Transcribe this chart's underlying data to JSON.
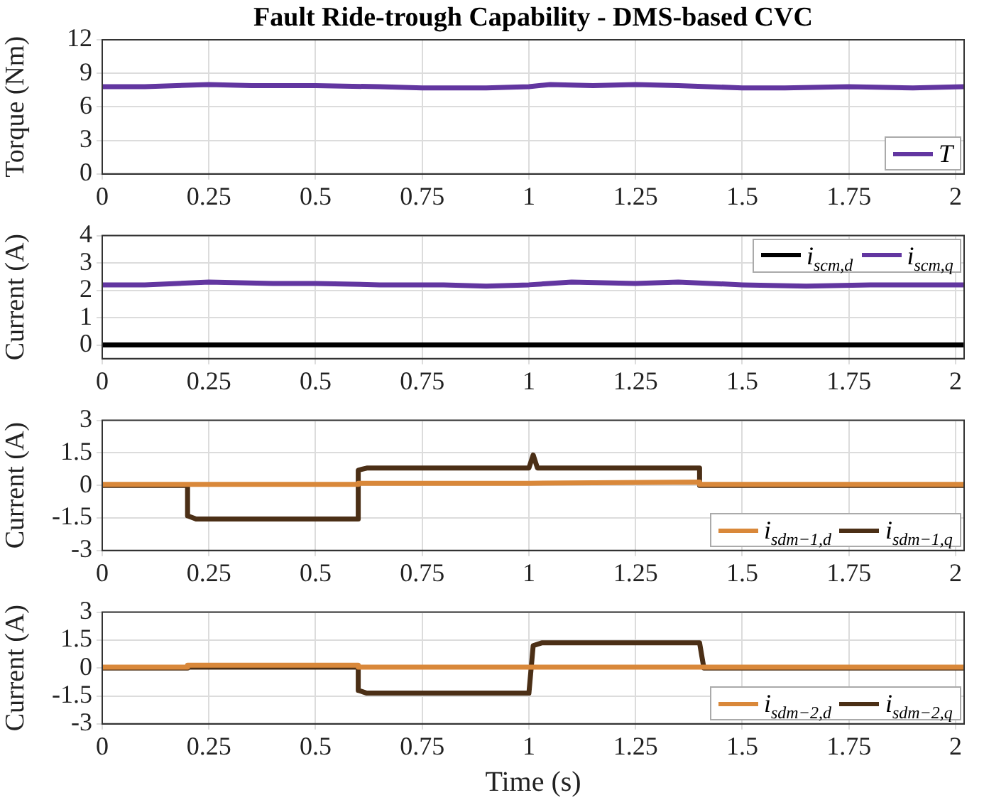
{
  "chart_data": [
    {
      "type": "line",
      "title": "Fault Ride-trough Capability - DMS-based CVC",
      "ylabel": "Torque (Nm)",
      "xlim": [
        0,
        2.02
      ],
      "xticks": [
        0,
        0.25,
        0.5,
        0.75,
        1,
        1.25,
        1.5,
        1.75,
        2
      ],
      "ylim": [
        0,
        12
      ],
      "yticks": [
        0,
        3,
        6,
        9,
        12
      ],
      "grid": true,
      "legend": "bottom right",
      "series": [
        {
          "name": "T",
          "color": "#6236a0",
          "x": [
            0,
            0.1,
            0.25,
            0.35,
            0.5,
            0.65,
            0.75,
            0.9,
            1,
            1.05,
            1.15,
            1.25,
            1.35,
            1.5,
            1.6,
            1.75,
            1.9,
            2.02
          ],
          "values": [
            7.8,
            7.8,
            8.0,
            7.9,
            7.9,
            7.8,
            7.7,
            7.7,
            7.8,
            8.0,
            7.9,
            8.0,
            7.9,
            7.7,
            7.7,
            7.8,
            7.7,
            7.8
          ]
        }
      ]
    },
    {
      "type": "line",
      "ylabel": "Current (A)",
      "xlim": [
        0,
        2.02
      ],
      "xticks": [
        0,
        0.25,
        0.5,
        0.75,
        1,
        1.25,
        1.5,
        1.75,
        2
      ],
      "ylim": [
        -0.5,
        4
      ],
      "yticks": [
        0,
        1,
        2,
        3,
        4
      ],
      "grid": true,
      "legend": "top right",
      "series": [
        {
          "name": "i$_{scm,d}$",
          "color": "#000000",
          "x": [
            0,
            0.5,
            1,
            1.5,
            2.02
          ],
          "values": [
            0,
            0,
            0,
            0,
            0
          ]
        },
        {
          "name": "i$_{scm,q}$",
          "color": "#6236a0",
          "x": [
            0,
            0.1,
            0.25,
            0.4,
            0.5,
            0.65,
            0.8,
            0.9,
            1,
            1.1,
            1.25,
            1.35,
            1.5,
            1.65,
            1.8,
            1.9,
            2.02
          ],
          "values": [
            2.2,
            2.2,
            2.3,
            2.25,
            2.25,
            2.2,
            2.2,
            2.15,
            2.2,
            2.3,
            2.25,
            2.3,
            2.2,
            2.15,
            2.2,
            2.2,
            2.2
          ]
        }
      ]
    },
    {
      "type": "line",
      "ylabel": "Current (A)",
      "xlim": [
        0,
        2.02
      ],
      "xticks": [
        0,
        0.25,
        0.5,
        0.75,
        1,
        1.25,
        1.5,
        1.75,
        2
      ],
      "ylim": [
        -3,
        3
      ],
      "yticks": [
        -3,
        -1.5,
        0,
        1.5,
        3
      ],
      "grid": true,
      "legend": "bottom right",
      "series": [
        {
          "name": "i$_{sdm−1,d}$",
          "color": "#d9883a",
          "x": [
            0,
            0.6,
            0.6,
            1.0,
            1.4,
            1.4,
            2.02
          ],
          "values": [
            0.05,
            0.05,
            0.1,
            0.1,
            0.15,
            0.05,
            0.05
          ]
        },
        {
          "name": "i$_{sdm−1,q}$",
          "color": "#4b2f16",
          "x": [
            0,
            0.2,
            0.2,
            0.22,
            0.6,
            0.6,
            0.62,
            1.0,
            1.01,
            1.02,
            1.4,
            1.4,
            2.02
          ],
          "values": [
            0,
            0,
            -1.4,
            -1.55,
            -1.55,
            0.7,
            0.8,
            0.8,
            1.4,
            0.8,
            0.8,
            0,
            0
          ]
        }
      ]
    },
    {
      "type": "line",
      "xlabel": "Time (s)",
      "ylabel": "Current (A)",
      "xlim": [
        0,
        2.02
      ],
      "xticks": [
        0,
        0.25,
        0.5,
        0.75,
        1,
        1.25,
        1.5,
        1.75,
        2
      ],
      "ylim": [
        -3,
        3
      ],
      "yticks": [
        -3,
        -1.5,
        0,
        1.5,
        3
      ],
      "grid": true,
      "legend": "bottom right",
      "series": [
        {
          "name": "i$_{sdm−2,d}$",
          "color": "#d9883a",
          "x": [
            0,
            0.2,
            0.2,
            0.6,
            0.6,
            1.4,
            1.4,
            2.02
          ],
          "values": [
            0.05,
            0.05,
            0.15,
            0.15,
            0.05,
            0.05,
            0.05,
            0.05
          ]
        },
        {
          "name": "i$_{sdm−2,q}$",
          "color": "#4b2f16",
          "x": [
            0,
            0.2,
            0.2,
            0.6,
            0.6,
            0.62,
            1.0,
            1.01,
            1.03,
            1.4,
            1.41,
            2.02
          ],
          "values": [
            0,
            0,
            0.05,
            0.05,
            -1.2,
            -1.35,
            -1.35,
            1.2,
            1.35,
            1.35,
            0,
            0
          ]
        }
      ]
    }
  ]
}
